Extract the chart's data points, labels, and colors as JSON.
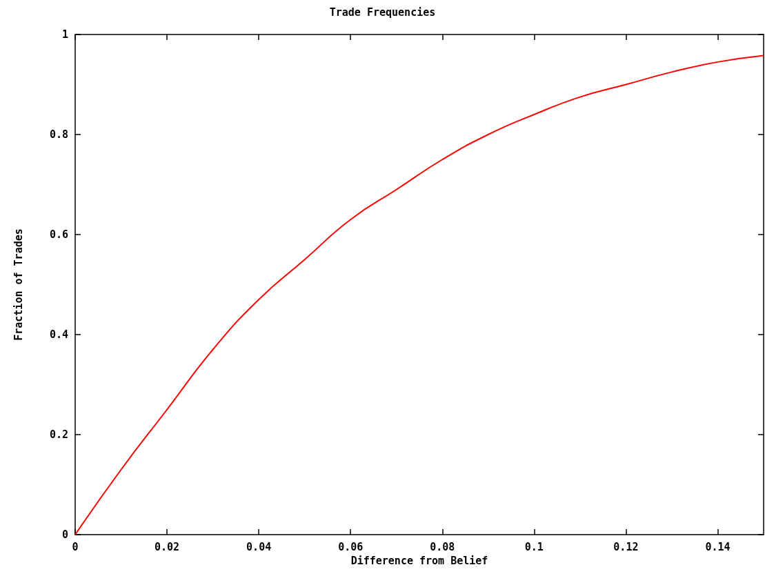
{
  "chart_data": {
    "type": "line",
    "title": "Trade Frequencies",
    "xlabel": "Difference from Belief",
    "ylabel": "Fraction of Trades",
    "x": [
      0,
      0.01,
      0.02,
      0.03,
      0.04,
      0.05,
      0.06,
      0.07,
      0.08,
      0.09,
      0.1,
      0.11,
      0.12,
      0.13,
      0.14,
      0.15
    ],
    "series": [
      {
        "color": "#ff0000",
        "values": [
          0,
          0.13,
          0.25,
          0.37,
          0.47,
          0.55,
          0.63,
          0.69,
          0.75,
          0.8,
          0.84,
          0.875,
          0.9,
          0.925,
          0.945,
          0.958
        ]
      }
    ],
    "xlim": [
      0,
      0.15
    ],
    "xticks": [
      0,
      0.02,
      0.04,
      0.06,
      0.08,
      0.1,
      0.12,
      0.14
    ],
    "ylim": [
      0,
      1
    ],
    "yticks": [
      0,
      0.2,
      0.4,
      0.6,
      0.8,
      1
    ],
    "grid": false,
    "marker": "none",
    "line_style": "solid"
  }
}
